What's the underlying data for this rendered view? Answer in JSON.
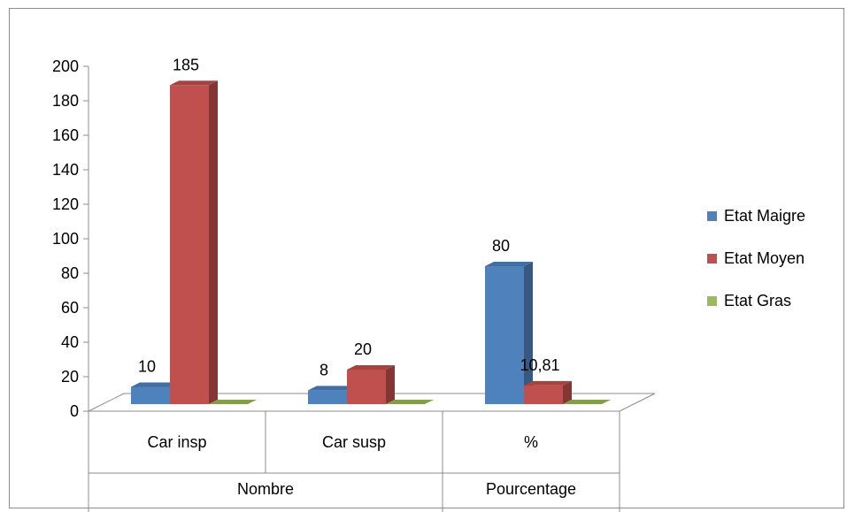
{
  "chart_data": {
    "type": "bar",
    "title": "",
    "xlabel": "",
    "ylabel": "",
    "ylim": [
      0,
      200
    ],
    "yticks": [
      0,
      20,
      40,
      60,
      80,
      100,
      120,
      140,
      160,
      180,
      200
    ],
    "categories": [
      "Car insp",
      "Car susp",
      "%"
    ],
    "category_groups": [
      {
        "label": "Nombre",
        "categories": [
          "Car insp",
          "Car susp"
        ]
      },
      {
        "label": "Pourcentage",
        "categories": [
          "%"
        ]
      }
    ],
    "series": [
      {
        "name": "Etat Maigre",
        "color": "#4f81bd",
        "values": [
          10,
          8,
          80
        ],
        "labels": [
          "10",
          "8",
          "80"
        ]
      },
      {
        "name": "Etat Moyen",
        "color": "#c0504d",
        "values": [
          185,
          20,
          10.81
        ],
        "labels": [
          "185",
          "20",
          "10,81"
        ]
      },
      {
        "name": "Etat Gras",
        "color": "#9bbb59",
        "values": [
          0,
          0,
          0
        ],
        "labels": [
          "",
          "",
          ""
        ]
      }
    ],
    "legend_position": "right",
    "grid": false,
    "style": "3d-column"
  }
}
